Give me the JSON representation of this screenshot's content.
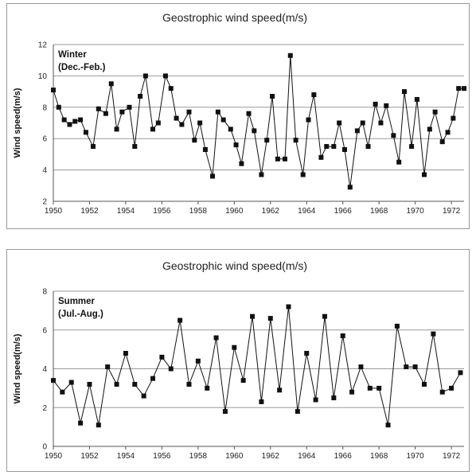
{
  "chart_data": [
    {
      "type": "line",
      "title": "Geostrophic wind speed(m/s)",
      "season_label_1": "Winter",
      "season_label_2": "(Dec.-Feb.)",
      "xlabel": "",
      "ylabel": "Wind speed(m/s)",
      "xlim": [
        1950,
        1972.7
      ],
      "ylim": [
        2,
        12
      ],
      "yticks": [
        2,
        4,
        6,
        8,
        10,
        12
      ],
      "xticks": [
        1950,
        1952,
        1954,
        1956,
        1958,
        1960,
        1962,
        1964,
        1966,
        1968,
        1970,
        1972
      ],
      "grid": true,
      "marker": "square",
      "series": [
        {
          "x": [
            1950.0,
            1950.3,
            1950.6,
            1950.9,
            1951.2,
            1951.5,
            1951.8,
            1952.2,
            1952.5,
            1952.9,
            1953.2,
            1953.5,
            1953.8,
            1954.2,
            1954.5,
            1954.8,
            1955.1,
            1955.5,
            1955.8,
            1956.2,
            1956.5,
            1956.8,
            1957.1,
            1957.5,
            1957.8,
            1958.1,
            1958.4,
            1958.8,
            1959.1,
            1959.4,
            1959.8,
            1960.1,
            1960.4,
            1960.8,
            1961.1,
            1961.5,
            1961.8,
            1962.1,
            1962.4,
            1962.8,
            1963.1,
            1963.4,
            1963.8,
            1964.1,
            1964.4,
            1964.8,
            1965.1,
            1965.5,
            1965.8,
            1966.1,
            1966.4,
            1966.8,
            1967.1,
            1967.4,
            1967.8,
            1968.1,
            1968.4,
            1968.8,
            1969.1,
            1969.4,
            1969.8,
            1970.1,
            1970.5,
            1970.8,
            1971.1,
            1971.5,
            1971.8,
            1972.1,
            1972.4,
            1972.7
          ],
          "y": [
            9.1,
            8.0,
            7.2,
            6.9,
            7.1,
            7.2,
            6.4,
            5.5,
            7.9,
            7.6,
            9.5,
            6.6,
            7.7,
            8.0,
            5.5,
            8.7,
            10.0,
            6.6,
            7.0,
            10.0,
            9.2,
            7.3,
            6.9,
            7.7,
            5.9,
            7.0,
            5.3,
            3.6,
            7.7,
            7.2,
            6.6,
            5.6,
            4.4,
            7.6,
            6.5,
            3.7,
            5.9,
            8.7,
            4.7,
            4.7,
            11.3,
            5.9,
            3.7,
            7.2,
            8.8,
            4.8,
            5.5,
            5.5,
            7.0,
            5.3,
            2.9,
            6.5,
            7.0,
            5.5,
            8.2,
            7.0,
            8.1,
            6.2,
            4.5,
            9.0,
            5.5,
            8.5,
            3.7,
            6.6,
            7.7,
            5.8,
            6.4,
            7.3,
            9.2,
            9.2
          ]
        }
      ]
    },
    {
      "type": "line",
      "title": "Geostrophic wind speed(m/s)",
      "season_label_1": "Summer",
      "season_label_2": "(Jul.-Aug.)",
      "xlabel": "",
      "ylabel": "Wind speed(m/s)",
      "xlim": [
        1950,
        1972.7
      ],
      "ylim": [
        0,
        8
      ],
      "yticks": [
        0,
        2,
        4,
        6,
        8
      ],
      "xticks": [
        1950,
        1952,
        1954,
        1956,
        1958,
        1960,
        1962,
        1964,
        1966,
        1968,
        1970,
        1972
      ],
      "grid": true,
      "marker": "square",
      "series": [
        {
          "x": [
            1950.0,
            1950.5,
            1951.0,
            1951.5,
            1952.0,
            1952.5,
            1953.0,
            1953.5,
            1954.0,
            1954.5,
            1955.0,
            1955.5,
            1956.0,
            1956.5,
            1957.0,
            1957.5,
            1958.0,
            1958.5,
            1959.0,
            1959.5,
            1960.0,
            1960.5,
            1961.0,
            1961.5,
            1962.0,
            1962.5,
            1963.0,
            1963.5,
            1964.0,
            1964.5,
            1965.0,
            1965.5,
            1966.0,
            1966.5,
            1967.0,
            1967.5,
            1968.0,
            1968.5,
            1969.0,
            1969.5,
            1970.0,
            1970.5,
            1971.0,
            1971.5,
            1972.0,
            1972.5
          ],
          "y": [
            3.4,
            2.8,
            3.3,
            1.2,
            3.2,
            1.1,
            4.1,
            3.2,
            4.8,
            3.2,
            2.6,
            3.5,
            4.6,
            4.0,
            6.5,
            3.2,
            4.4,
            3.0,
            5.6,
            1.8,
            5.1,
            3.4,
            6.7,
            2.3,
            6.6,
            2.9,
            7.2,
            1.8,
            4.8,
            2.4,
            6.7,
            2.5,
            5.7,
            2.8,
            4.1,
            3.0,
            3.0,
            1.1,
            6.2,
            4.1,
            4.1,
            3.2,
            5.8,
            2.8,
            3.0,
            3.8
          ]
        }
      ]
    }
  ]
}
